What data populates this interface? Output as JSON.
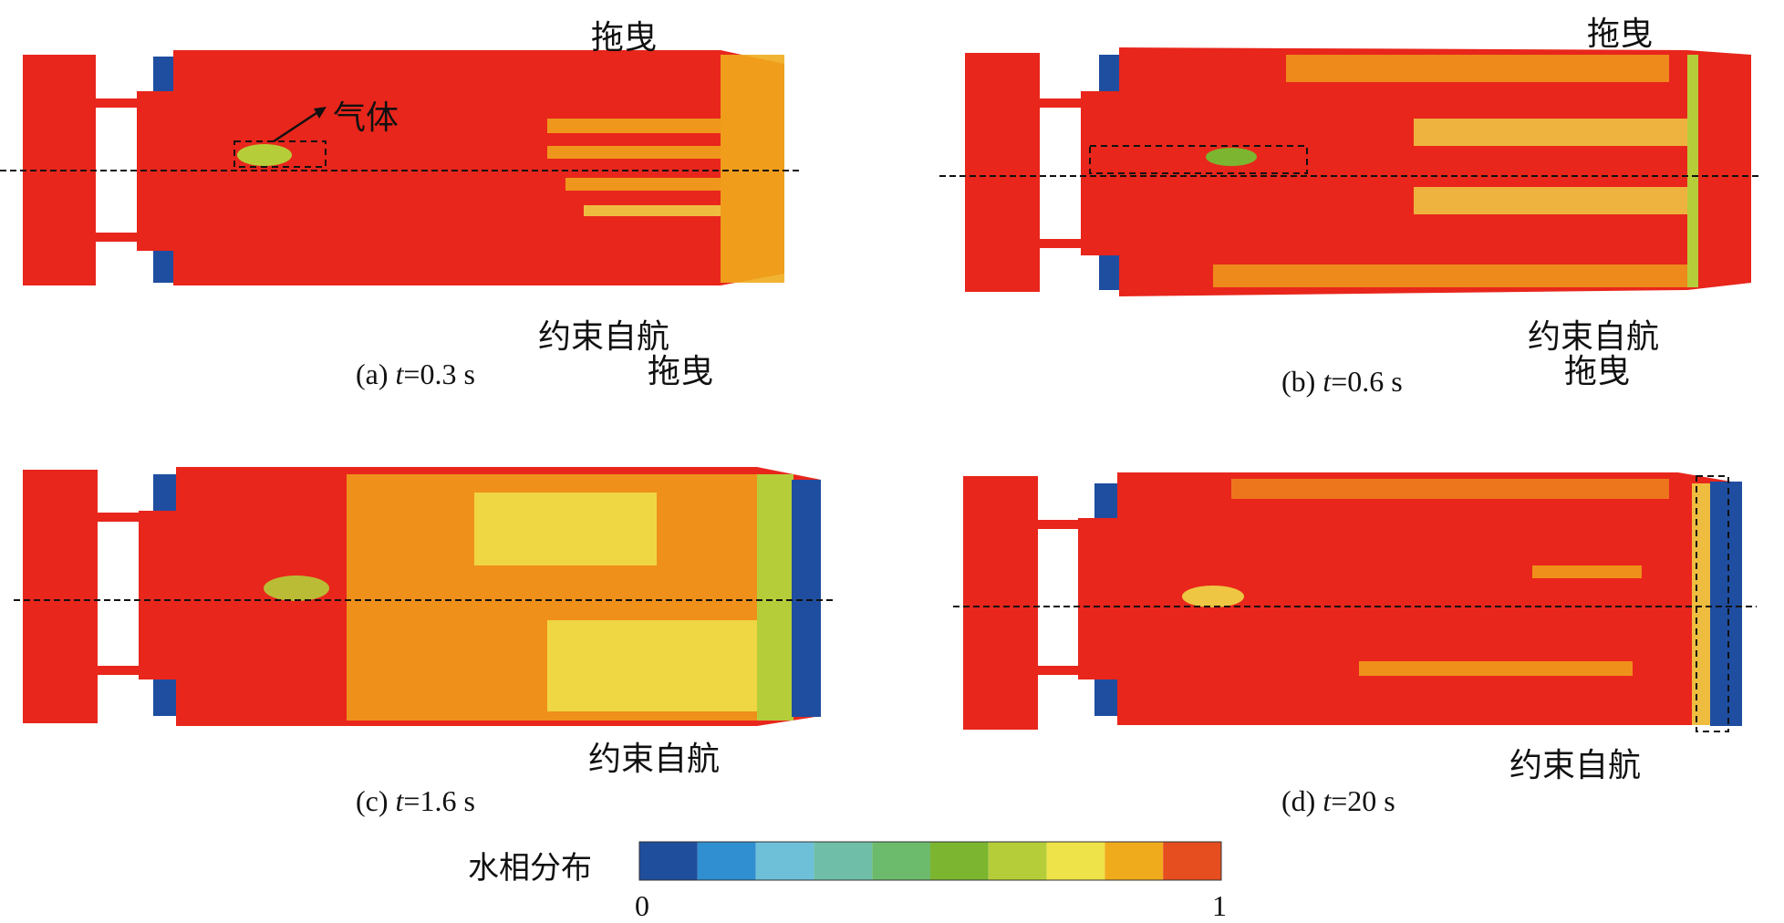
{
  "panels": [
    {
      "id": "a",
      "caption_prefix": "(a) ",
      "caption_var": "t",
      "caption_suffix": "=0.3 s",
      "label_drag": "拖曳",
      "label_self": "约束自航",
      "label_gas": "气体"
    },
    {
      "id": "b",
      "caption_prefix": "(b) ",
      "caption_var": "t",
      "caption_suffix": "=0.6 s",
      "label_drag": "拖曳",
      "label_self": "约束自航"
    },
    {
      "id": "c",
      "caption_prefix": "(c) ",
      "caption_var": "t",
      "caption_suffix": "=1.6 s",
      "label_drag": "拖曳",
      "label_self": "约束自航"
    },
    {
      "id": "d",
      "caption_prefix": "(d) ",
      "caption_var": "t",
      "caption_suffix": "=20 s",
      "label_drag": "拖曳",
      "label_self": "约束自航"
    }
  ],
  "colorbar": {
    "title": "水相分布",
    "min_label": "0",
    "max_label": "1",
    "colors": [
      "#1f4e9c",
      "#2f8fd0",
      "#6ec0d8",
      "#6fbfa8",
      "#6cba6c",
      "#7cb52f",
      "#b6cd3a",
      "#efe34a",
      "#f0ab1c",
      "#e64d1f"
    ]
  },
  "colors": {
    "water": "#e8261c",
    "gas": "#1f4ea0",
    "mixed": "#f0ab1c"
  }
}
